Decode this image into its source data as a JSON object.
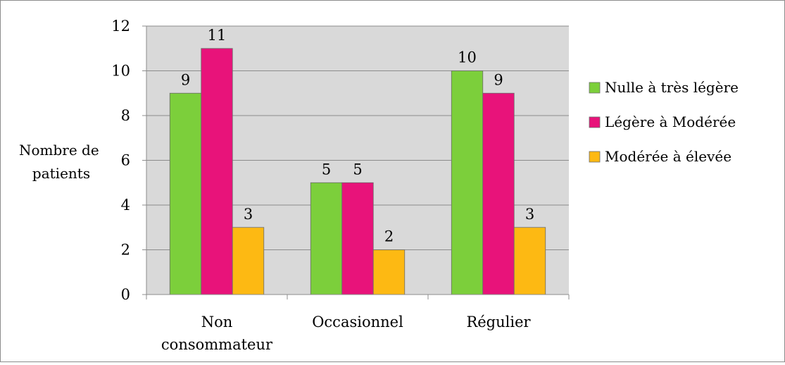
{
  "chart_data": {
    "type": "bar",
    "title": "",
    "xlabel": "",
    "ylabel_lines": [
      "Nombre de",
      "patients"
    ],
    "ylim": [
      0,
      12
    ],
    "yticks": [
      0,
      2,
      4,
      6,
      8,
      10,
      12
    ],
    "categories": [
      [
        "Non",
        "consommateur"
      ],
      [
        "Occasionnel"
      ],
      [
        "Régulier"
      ]
    ],
    "series": [
      {
        "name": "Nulle à très légère",
        "color": "#7ccf3b",
        "values": [
          9,
          5,
          10
        ]
      },
      {
        "name": "Légère à Modérée",
        "color": "#e8137a",
        "values": [
          11,
          5,
          9
        ]
      },
      {
        "name": "Modérée à élevée",
        "color": "#fdb913",
        "values": [
          3,
          2,
          3
        ]
      }
    ],
    "plot_background": "#d9d9d9",
    "grid": true,
    "legend_position": "right"
  }
}
